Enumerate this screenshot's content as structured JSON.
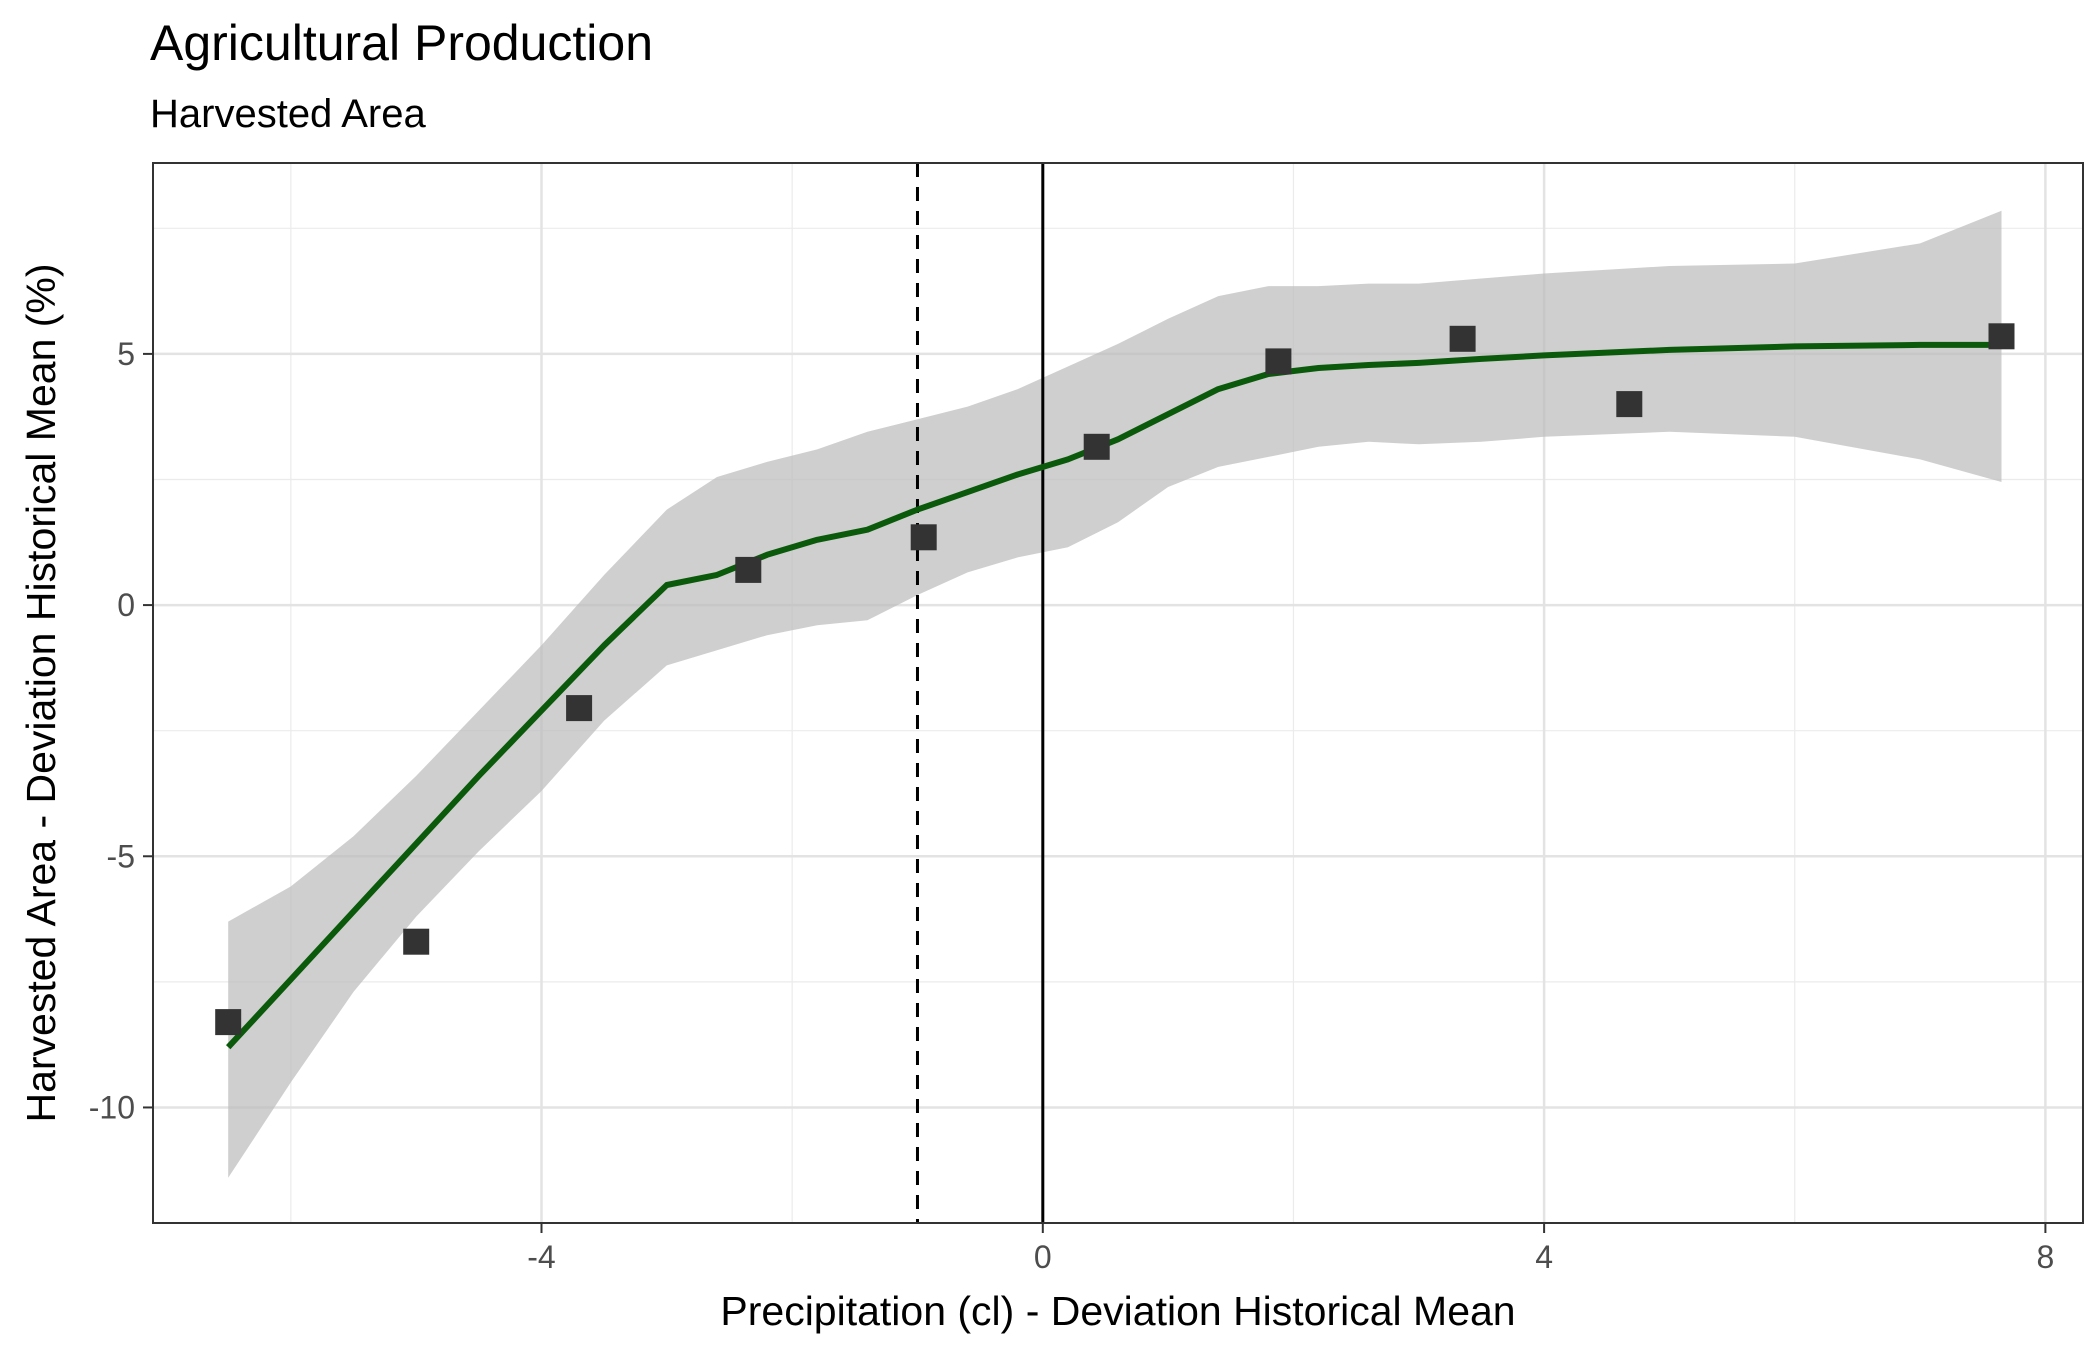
{
  "chart_data": {
    "type": "scatter",
    "title": "Agricultural Production",
    "subtitle": "Harvested Area",
    "xlabel": "Precipitation (cl) - Deviation Historical Mean",
    "ylabel": "Harvested Area - Deviation Historical Mean (%)",
    "xlim": [
      -7.1,
      8.3
    ],
    "ylim": [
      -12.3,
      8.8
    ],
    "x_ticks": [
      -4,
      0,
      4,
      8
    ],
    "x_tick_labels": [
      "-4",
      "0",
      "4",
      "8"
    ],
    "y_ticks": [
      -10,
      -5,
      0,
      5
    ],
    "y_tick_labels": [
      "-10",
      "-5",
      "0",
      "5"
    ],
    "x_minor_ticks": [
      -6,
      -2,
      2,
      6
    ],
    "y_minor_ticks": [
      -7.5,
      -2.5,
      2.5,
      7.5
    ],
    "grid": true,
    "points": [
      {
        "x": -6.5,
        "y": -8.3
      },
      {
        "x": -5.0,
        "y": -6.7
      },
      {
        "x": -3.7,
        "y": -2.05
      },
      {
        "x": -2.35,
        "y": 0.7
      },
      {
        "x": -0.95,
        "y": 1.35
      },
      {
        "x": 0.43,
        "y": 3.15
      },
      {
        "x": 1.88,
        "y": 4.85
      },
      {
        "x": 3.35,
        "y": 5.3
      },
      {
        "x": 4.68,
        "y": 4.0
      },
      {
        "x": 7.65,
        "y": 5.35
      }
    ],
    "smooth_line": {
      "color": "#0b5a0b",
      "x": [
        -6.5,
        -6.0,
        -5.5,
        -5.0,
        -4.5,
        -4.0,
        -3.5,
        -3.0,
        -2.6,
        -2.2,
        -1.8,
        -1.4,
        -1.0,
        -0.6,
        -0.2,
        0.2,
        0.6,
        1.0,
        1.4,
        1.8,
        2.2,
        2.6,
        3.0,
        3.5,
        4.0,
        5.0,
        6.0,
        7.0,
        7.65
      ],
      "y": [
        -8.8,
        -7.45,
        -6.1,
        -4.75,
        -3.4,
        -2.1,
        -0.8,
        0.4,
        0.6,
        1.0,
        1.3,
        1.5,
        1.9,
        2.25,
        2.6,
        2.9,
        3.3,
        3.8,
        4.3,
        4.6,
        4.72,
        4.78,
        4.82,
        4.9,
        4.97,
        5.08,
        5.15,
        5.18,
        5.18
      ]
    },
    "confidence_band": {
      "color": "#bdbdbd",
      "x": [
        -6.5,
        -6.0,
        -5.5,
        -5.0,
        -4.5,
        -4.0,
        -3.5,
        -3.0,
        -2.6,
        -2.2,
        -1.8,
        -1.4,
        -1.0,
        -0.6,
        -0.2,
        0.2,
        0.6,
        1.0,
        1.4,
        1.8,
        2.2,
        2.6,
        3.0,
        3.5,
        4.0,
        5.0,
        6.0,
        7.0,
        7.65
      ],
      "upper": [
        -6.3,
        -5.6,
        -4.6,
        -3.4,
        -2.1,
        -0.8,
        0.6,
        1.9,
        2.55,
        2.85,
        3.1,
        3.45,
        3.7,
        3.95,
        4.3,
        4.75,
        5.2,
        5.7,
        6.15,
        6.35,
        6.35,
        6.4,
        6.4,
        6.5,
        6.6,
        6.75,
        6.8,
        7.2,
        7.85
      ],
      "lower": [
        -11.4,
        -9.5,
        -7.7,
        -6.2,
        -4.9,
        -3.7,
        -2.3,
        -1.2,
        -0.9,
        -0.6,
        -0.4,
        -0.3,
        0.2,
        0.65,
        0.95,
        1.15,
        1.65,
        2.35,
        2.75,
        2.95,
        3.15,
        3.25,
        3.2,
        3.25,
        3.35,
        3.45,
        3.35,
        2.9,
        2.45
      ]
    },
    "reference_lines": [
      {
        "axis": "x",
        "value": 0,
        "style": "solid",
        "color": "#000000"
      },
      {
        "axis": "x",
        "value": -1.0,
        "style": "dashed",
        "color": "#000000"
      }
    ],
    "point_color": "#333333",
    "point_shape": "square"
  }
}
